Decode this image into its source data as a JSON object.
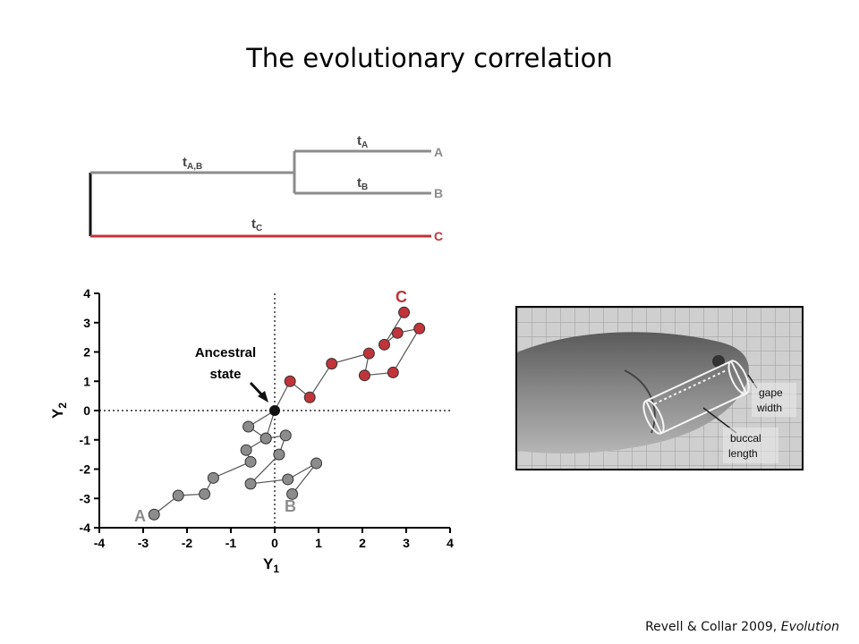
{
  "slide": {
    "title": "The evolutionary correlation",
    "citation_text": "Revell & Collar 2009, ",
    "citation_journal": "Evolution"
  },
  "tree": {
    "tips": [
      "A",
      "B",
      "C"
    ],
    "branch_labels": {
      "ab": "t",
      "ab_sub": "A,B",
      "a": "t",
      "a_sub": "A",
      "b": "t",
      "b_sub": "B",
      "c": "t",
      "c_sub": "C"
    },
    "colors": {
      "grey": "#8c8c8c",
      "red": "#c0343a",
      "root": "#111111"
    }
  },
  "photo": {
    "labels": {
      "gape1": "gape",
      "gape2": "width",
      "buccal1": "buccal",
      "buccal2": "length"
    }
  },
  "chart_data": {
    "type": "scatter",
    "xlabel": "Y",
    "xlabel_sub": "1",
    "ylabel": "Y",
    "ylabel_sub": "2",
    "xlim": [
      -4,
      4
    ],
    "ylim": [
      -4,
      4
    ],
    "xticks": [
      "-4",
      "-3",
      "-2",
      "-1",
      "0",
      "1",
      "2",
      "3",
      "4"
    ],
    "yticks": [
      "-4",
      "-3",
      "-2",
      "-1",
      "0",
      "1",
      "2",
      "3",
      "4"
    ],
    "reference_lines": {
      "x": 0,
      "y": 0,
      "style": "dotted"
    },
    "series": [
      {
        "name": "A",
        "color": "#8c8c8c",
        "x": [
          0,
          -0.6,
          -0.2,
          -0.65,
          -0.55,
          -1.4,
          -1.6,
          -2.2,
          -2.75
        ],
        "y": [
          0,
          -0.55,
          -0.95,
          -1.35,
          -1.75,
          -2.3,
          -2.85,
          -2.9,
          -3.55
        ]
      },
      {
        "name": "B",
        "color": "#8c8c8c",
        "x": [
          0,
          -0.2,
          0.25,
          0.1,
          -0.55,
          0.3,
          0.95,
          0.4
        ],
        "y": [
          0,
          -0.95,
          -0.85,
          -1.5,
          -2.5,
          -2.35,
          -1.8,
          -2.85
        ]
      },
      {
        "name": "C",
        "color": "#c0343a",
        "x": [
          0,
          0.35,
          0.8,
          1.3,
          2.15,
          2.05,
          2.7,
          3.3,
          2.8,
          2.5,
          2.95
        ],
        "y": [
          0,
          1.0,
          0.45,
          1.6,
          1.95,
          1.2,
          1.3,
          2.8,
          2.65,
          2.25,
          3.35
        ]
      }
    ],
    "ancestral_point": {
      "x": 0,
      "y": 0
    },
    "annotation": {
      "line1": "Ancestral",
      "line2": "state"
    },
    "series_labels": [
      "A",
      "B",
      "C"
    ]
  }
}
